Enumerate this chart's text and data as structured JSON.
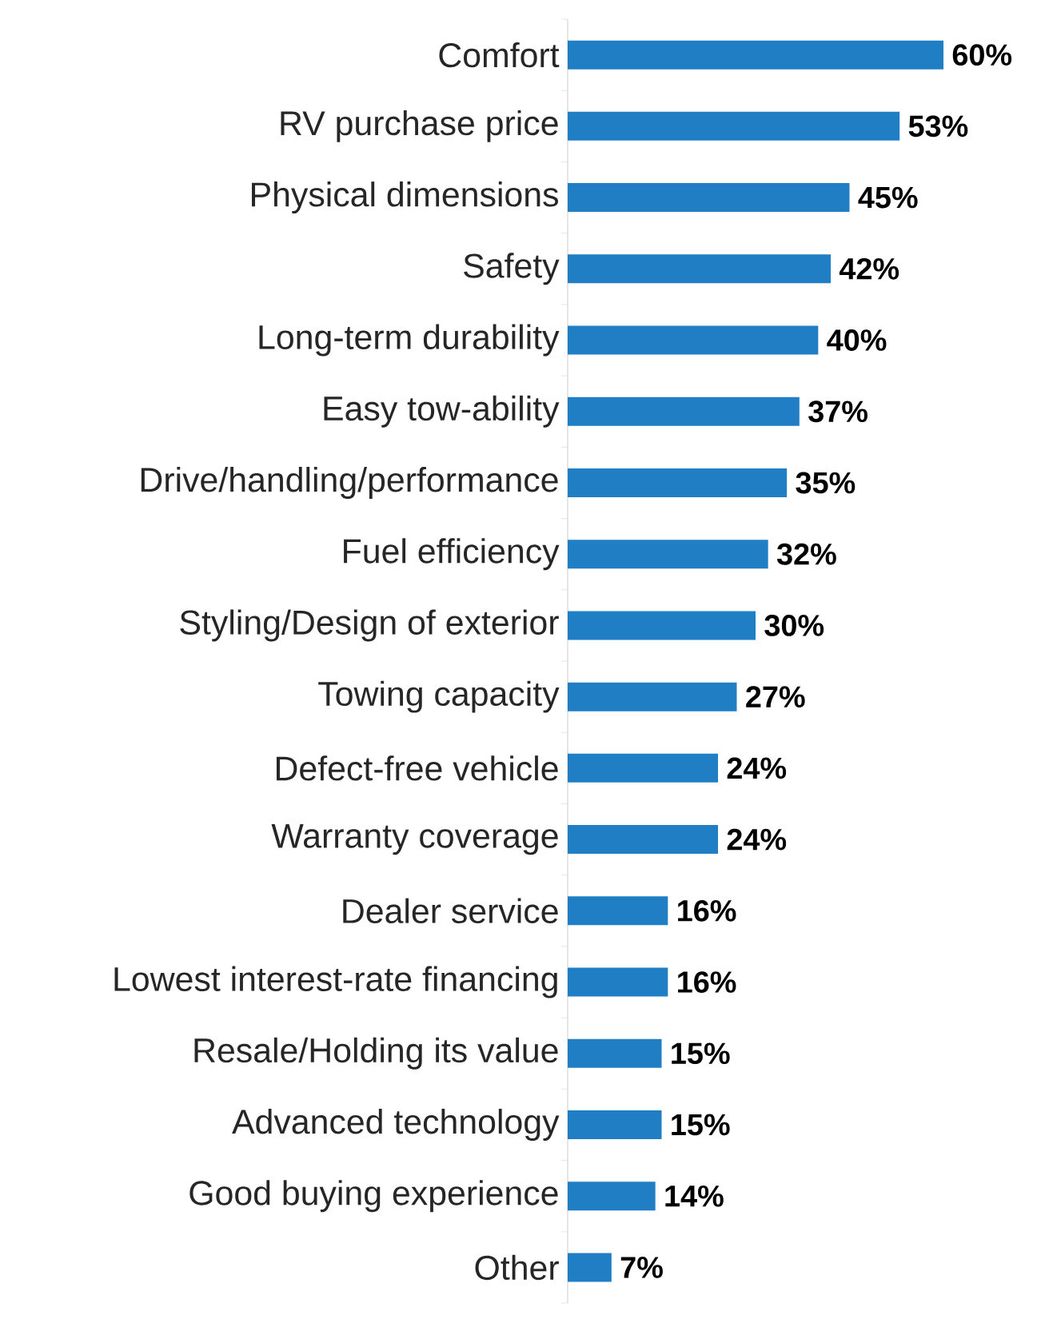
{
  "chart_data": {
    "type": "bar",
    "orientation": "horizontal",
    "color": "#1f7ec4",
    "categories": [
      "Comfort",
      "RV purchase price",
      "Physical dimensions",
      "Safety",
      "Long-term durability",
      "Easy tow-ability",
      "Drive/handling/performance",
      "Fuel efficiency",
      "Styling/Design of exterior",
      "Towing capacity",
      "Defect-free vehicle",
      "Warranty coverage",
      "Dealer service",
      "Lowest interest-rate financing",
      "Resale/Holding its value",
      "Advanced technology",
      "Good buying experience",
      "Other"
    ],
    "values": [
      60,
      53,
      45,
      42,
      40,
      37,
      35,
      32,
      30,
      27,
      24,
      24,
      16,
      16,
      15,
      15,
      14,
      7
    ],
    "value_labels": [
      "60%",
      "53%",
      "45%",
      "42%",
      "40%",
      "37%",
      "35%",
      "32%",
      "30%",
      "27%",
      "24%",
      "24%",
      "16%",
      "16%",
      "15%",
      "15%",
      "14%",
      "7%"
    ]
  }
}
